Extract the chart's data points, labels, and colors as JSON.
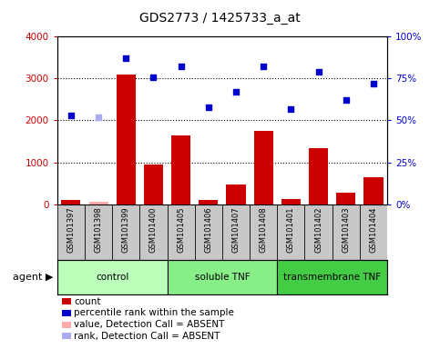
{
  "title": "GDS2773 / 1425733_a_at",
  "samples": [
    "GSM101397",
    "GSM101398",
    "GSM101399",
    "GSM101400",
    "GSM101405",
    "GSM101406",
    "GSM101407",
    "GSM101408",
    "GSM101401",
    "GSM101402",
    "GSM101403",
    "GSM101404"
  ],
  "counts": [
    100,
    50,
    3100,
    950,
    1650,
    100,
    470,
    1750,
    130,
    1330,
    280,
    650
  ],
  "percentile_ranks": [
    53,
    52,
    87,
    76,
    82,
    58,
    67,
    82,
    57,
    79,
    62,
    72
  ],
  "absent_value_indices": [
    1
  ],
  "absent_rank_indices": [
    1
  ],
  "groups": [
    {
      "label": "control",
      "start": 0,
      "end": 4,
      "color": "#bbffbb"
    },
    {
      "label": "soluble TNF",
      "start": 4,
      "end": 8,
      "color": "#88ee88"
    },
    {
      "label": "transmembrane TNF",
      "start": 8,
      "end": 12,
      "color": "#44cc44"
    }
  ],
  "ylim_left": [
    0,
    4000
  ],
  "ylim_right": [
    0,
    100
  ],
  "yticks_left": [
    0,
    1000,
    2000,
    3000,
    4000
  ],
  "ytick_labels_left": [
    "0",
    "1000",
    "2000",
    "3000",
    "4000"
  ],
  "yticks_right": [
    0,
    25,
    50,
    75,
    100
  ],
  "ytick_labels_right": [
    "0%",
    "25%",
    "50%",
    "75%",
    "100%"
  ],
  "bar_color": "#cc0000",
  "scatter_color": "#0000cc",
  "absent_bar_color": "#ffaaaa",
  "absent_rank_color": "#aaaaee",
  "left_tick_color": "#cc0000",
  "right_tick_color": "#0000cc",
  "sample_bg_color": "#c8c8c8",
  "legend_items": [
    {
      "color": "#cc0000",
      "label": "count"
    },
    {
      "color": "#0000cc",
      "label": "percentile rank within the sample"
    },
    {
      "color": "#ffaaaa",
      "label": "value, Detection Call = ABSENT"
    },
    {
      "color": "#aaaaee",
      "label": "rank, Detection Call = ABSENT"
    }
  ]
}
